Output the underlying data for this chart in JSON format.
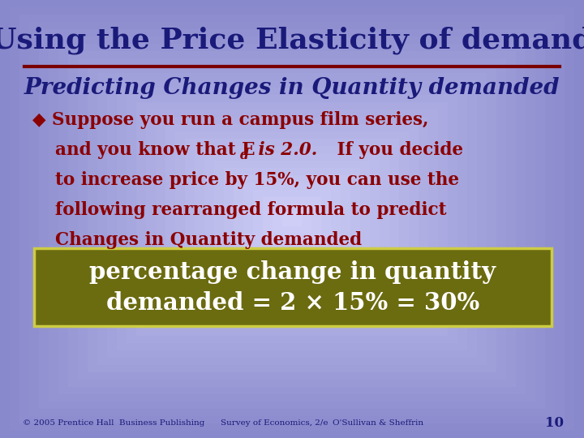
{
  "title": "Using the Price Elasticity of demand",
  "subtitle": "Predicting Changes in Quantity demanded",
  "box_line1": "percentage change in quantity",
  "box_line2": "demanded = 2 × 15% = 30%",
  "footer1": "© 2005 Prentice Hall  Business Publishing",
  "footer2": "Survey of Economics, 2/e",
  "footer3": "O'Sullivan & Sheffrin",
  "page_num": "10",
  "bg_color_edge": "#8888cc",
  "bg_color_center": "#d0d0f8",
  "title_color": "#1a1a7a",
  "subtitle_color": "#1a1a7a",
  "bullet_color": "#8b0000",
  "box_bg_color": "#6b6b10",
  "box_border_color": "#cccc44",
  "box_text_color": "#ffffff",
  "divider_color": "#7a0000",
  "footer_color": "#1a1a7a"
}
